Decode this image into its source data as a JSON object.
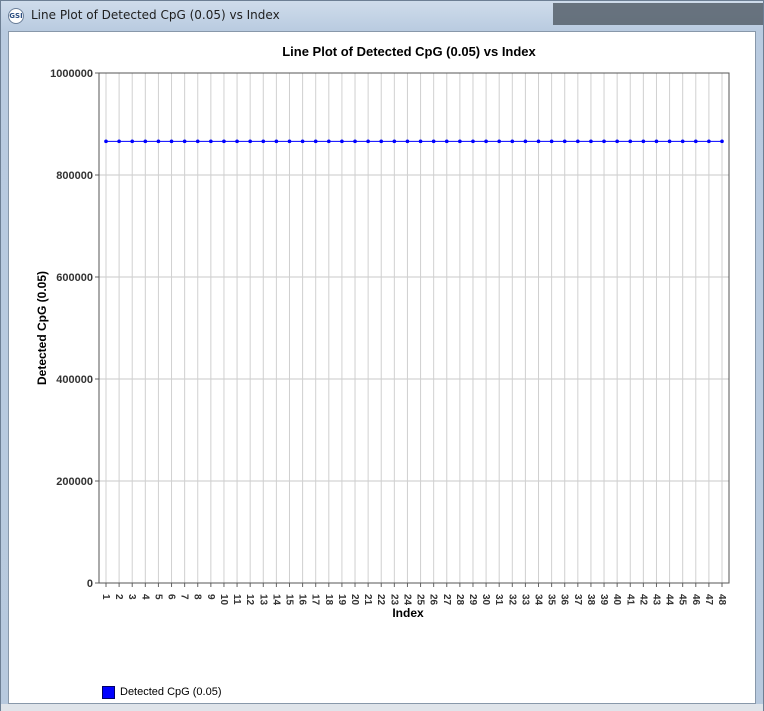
{
  "window": {
    "title": "Line Plot of Detected CpG (0.05) vs Index",
    "icon": "gsi-app-icon"
  },
  "chart_data": {
    "type": "line",
    "title": "Line Plot of Detected CpG (0.05) vs Index",
    "xlabel": "Index",
    "ylabel": "Detected CpG (0.05)",
    "ylim": [
      0,
      1000000
    ],
    "yticks": [
      "0",
      "200000",
      "400000",
      "600000",
      "800000",
      "1000000"
    ],
    "ytick_values": [
      0,
      200000,
      400000,
      600000,
      800000,
      1000000
    ],
    "x": [
      1,
      2,
      3,
      4,
      5,
      6,
      7,
      8,
      9,
      10,
      11,
      12,
      13,
      14,
      15,
      16,
      17,
      18,
      19,
      20,
      21,
      22,
      23,
      24,
      25,
      26,
      27,
      28,
      29,
      30,
      31,
      32,
      33,
      34,
      35,
      36,
      37,
      38,
      39,
      40,
      41,
      42,
      43,
      44,
      45,
      46,
      47,
      48
    ],
    "series": [
      {
        "name": "Detected CpG (0.05)",
        "color": "#0000ff",
        "values": [
          866000,
          866000,
          866000,
          866000,
          866000,
          866000,
          866000,
          866000,
          866000,
          866000,
          866000,
          866000,
          866000,
          866000,
          866000,
          866000,
          866000,
          866000,
          866000,
          866000,
          866000,
          866000,
          866000,
          866000,
          866000,
          866000,
          866000,
          866000,
          866000,
          866000,
          866000,
          866000,
          866000,
          866000,
          866000,
          866000,
          866000,
          866000,
          866000,
          866000,
          866000,
          866000,
          866000,
          866000,
          866000,
          866000,
          866000,
          866000
        ]
      }
    ],
    "grid": true,
    "legend_position": "bottom-left"
  }
}
